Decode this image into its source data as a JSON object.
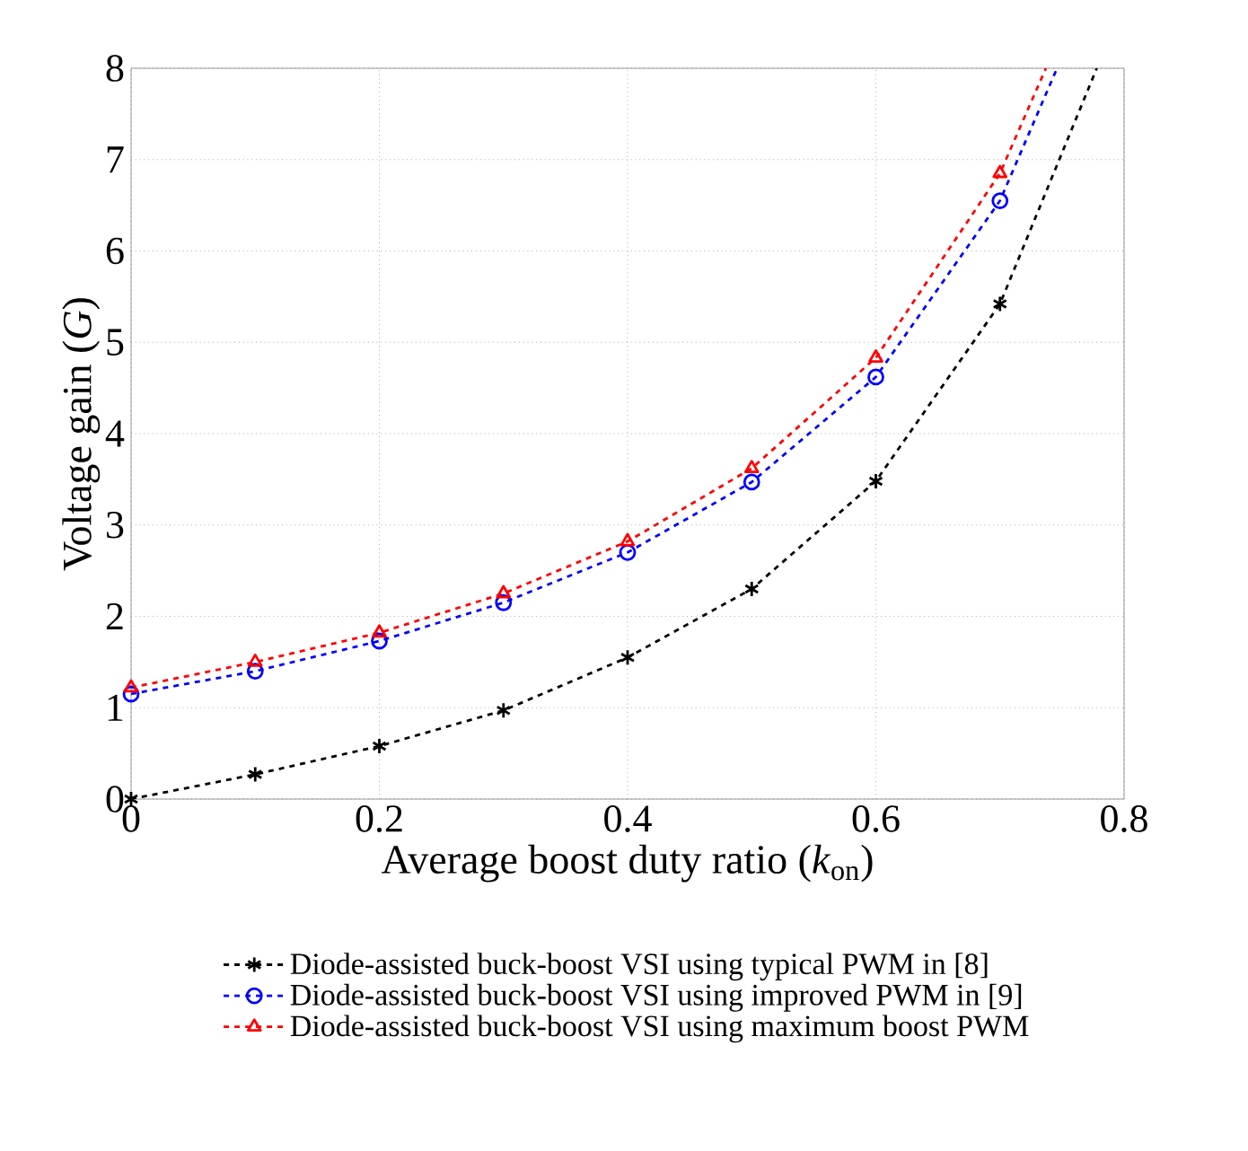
{
  "chart_data": {
    "type": "line",
    "xlabel": "Average boost duty ratio (*k*$_{on}$)",
    "ylabel": "Voltage gain (*G*)",
    "xlim": [
      0,
      0.8
    ],
    "ylim": [
      0,
      8
    ],
    "xticks": [
      0,
      0.2,
      0.4,
      0.6,
      0.8
    ],
    "yticks": [
      0,
      1,
      2,
      3,
      4,
      5,
      6,
      7,
      8
    ],
    "grid": true,
    "legend": "bottom",
    "line_style": "dashed",
    "series": [
      {
        "name": "Diode-assisted buck-boost VSI using typical PWM in [8]",
        "color": "#000000",
        "marker": "cross",
        "x": [
          0,
          0.1,
          0.2,
          0.3,
          0.4,
          0.5,
          0.6,
          0.7,
          0.778
        ],
        "values": [
          0,
          0.27,
          0.58,
          0.97,
          1.55,
          2.3,
          3.48,
          5.42,
          8
        ]
      },
      {
        "name": "Diode-assisted buck-boost VSI using improved PWM in [9]",
        "color": "#0000ff",
        "marker": "circle",
        "x": [
          0,
          0.1,
          0.2,
          0.3,
          0.4,
          0.5,
          0.6,
          0.7,
          0.746
        ],
        "values": [
          1.15,
          1.4,
          1.73,
          2.15,
          2.7,
          3.47,
          4.62,
          6.55,
          8
        ]
      },
      {
        "name": "Diode-assisted buck-boost VSI using maximum boost PWM",
        "color": "#ff0000",
        "marker": "triangle",
        "x": [
          0,
          0.1,
          0.2,
          0.3,
          0.4,
          0.5,
          0.6,
          0.7,
          0.737
        ],
        "values": [
          1.22,
          1.5,
          1.82,
          2.25,
          2.82,
          3.62,
          4.83,
          6.85,
          8
        ]
      }
    ]
  }
}
